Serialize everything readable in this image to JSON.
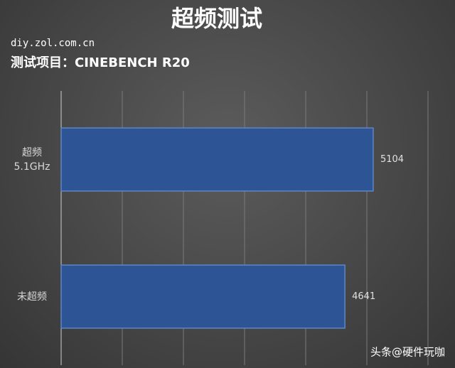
{
  "chart_data": {
    "type": "barh",
    "title": "超频测试",
    "subtitle": "diy.zol.com.cn",
    "test_item": "测试项目：CINEBENCH R20",
    "watermark": "头条@硬件玩咖",
    "categories": [
      "超频\n5.1GHz",
      "未超频"
    ],
    "values": [
      5104,
      4641
    ],
    "color": "#2d5596",
    "xlim": [
      0,
      6000
    ],
    "xticks": [
      0,
      1000,
      2000,
      3000,
      4000,
      5000,
      6000
    ],
    "grid": true
  }
}
